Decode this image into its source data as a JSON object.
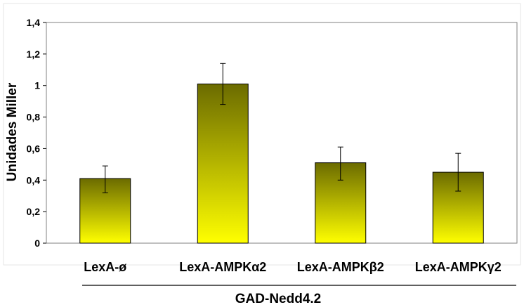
{
  "chart_data": {
    "type": "bar",
    "title": "",
    "ylabel": "Unidades Miller",
    "xlabel": "",
    "group_label": "GAD-Nedd4.2",
    "categories": [
      "LexA-ø",
      "LexA-AMPKα2",
      "LexA-AMPKβ2",
      "LexA-AMPKγ2"
    ],
    "series": [
      {
        "values": [
          0.41,
          1.01,
          0.51,
          0.45
        ],
        "error_low": [
          0.32,
          0.88,
          0.4,
          0.33
        ],
        "error_high": [
          0.49,
          1.14,
          0.61,
          0.57
        ]
      }
    ],
    "ylim": [
      0,
      1.4
    ],
    "yticks": [
      0,
      0.2,
      0.4,
      0.6,
      0.8,
      1,
      1.2,
      1.4
    ],
    "ytick_labels": [
      "0",
      "0,2",
      "0,4",
      "0,6",
      "0,8",
      "1",
      "1,2",
      "1,4"
    ],
    "grid": false,
    "bar_gradient": {
      "top": "#6b6b00",
      "bottom": "#ffff00"
    }
  }
}
